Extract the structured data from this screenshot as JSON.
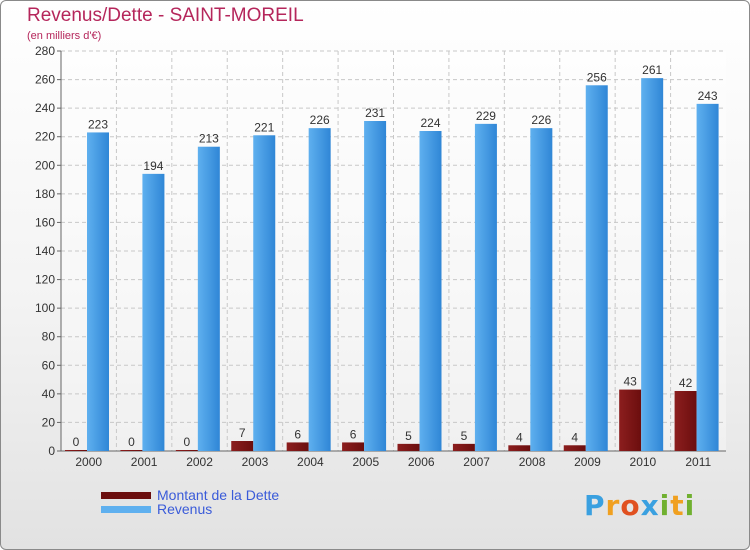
{
  "title": "Revenus/Dette - SAINT-MOREIL",
  "subtitle": "(en milliers d'€)",
  "colors": {
    "debt": "#6b0e0e",
    "debt_light": "#8c1e1e",
    "revenue": "#2f86d6",
    "revenue_light": "#5fb0ef",
    "title": "#b5265b",
    "legend_text": "#3a5bd9",
    "grid": "#c8c8c8"
  },
  "chart_data": {
    "type": "bar",
    "title": "Revenus/Dette - SAINT-MOREIL",
    "ylabel": "(en milliers d'€)",
    "xlabel": "",
    "categories": [
      "2000",
      "2001",
      "2002",
      "2003",
      "2004",
      "2005",
      "2006",
      "2007",
      "2008",
      "2009",
      "2010",
      "2011"
    ],
    "series": [
      {
        "name": "Montant de la Dette",
        "values": [
          0,
          0,
          0,
          7,
          6,
          6,
          5,
          5,
          4,
          4,
          43,
          42
        ]
      },
      {
        "name": "Revenus",
        "values": [
          223,
          194,
          213,
          221,
          226,
          231,
          224,
          229,
          226,
          256,
          261,
          243
        ]
      }
    ],
    "ylim": [
      0,
      280
    ],
    "yticks": [
      0,
      20,
      40,
      60,
      80,
      100,
      120,
      140,
      160,
      180,
      200,
      220,
      240,
      260,
      280
    ],
    "grid": true,
    "legend_position": "bottom-left"
  },
  "legend": {
    "debt_label": "Montant de la Dette",
    "revenue_label": "Revenus"
  },
  "logo": {
    "letters": [
      "P",
      "r",
      "o",
      "x",
      "i",
      "t",
      "i"
    ],
    "colors": [
      "#3aa0e0",
      "#f0a020",
      "#e05020",
      "#3aa0e0",
      "#70b030",
      "#f0a020",
      "#70b030"
    ]
  }
}
